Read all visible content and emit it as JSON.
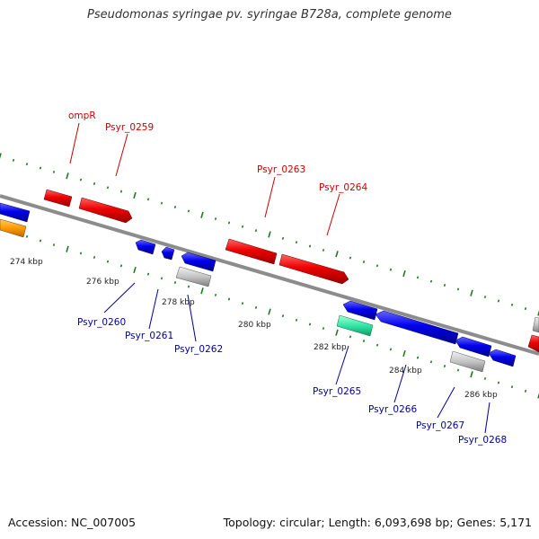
{
  "title": "Pseudomonas syringae pv. syringae B728a, complete genome",
  "footer": {
    "accession": "Accession: NC_007005",
    "summary": "Topology: circular; Length: 6,093,698 bp; Genes: 5,171"
  },
  "colors": {
    "backbone": "#8c8c8c",
    "tick": "#1f7a1f",
    "forward_label": "#cc0000",
    "reverse_label": "#000099",
    "kbp_label": "#222222"
  },
  "scale_labels": [
    "274 kbp",
    "276 kbp",
    "278 kbp",
    "280 kbp",
    "282 kbp",
    "284 kbp",
    "286 kbp"
  ],
  "forward_labels": [
    "ompR",
    "Psyr_0259",
    "Psyr_0263",
    "Psyr_0264"
  ],
  "reverse_labels": [
    "Psyr_0260",
    "Psyr_0261",
    "Psyr_0262",
    "Psyr_0265",
    "Psyr_0266",
    "Psyr_0267",
    "Psyr_0268"
  ]
}
